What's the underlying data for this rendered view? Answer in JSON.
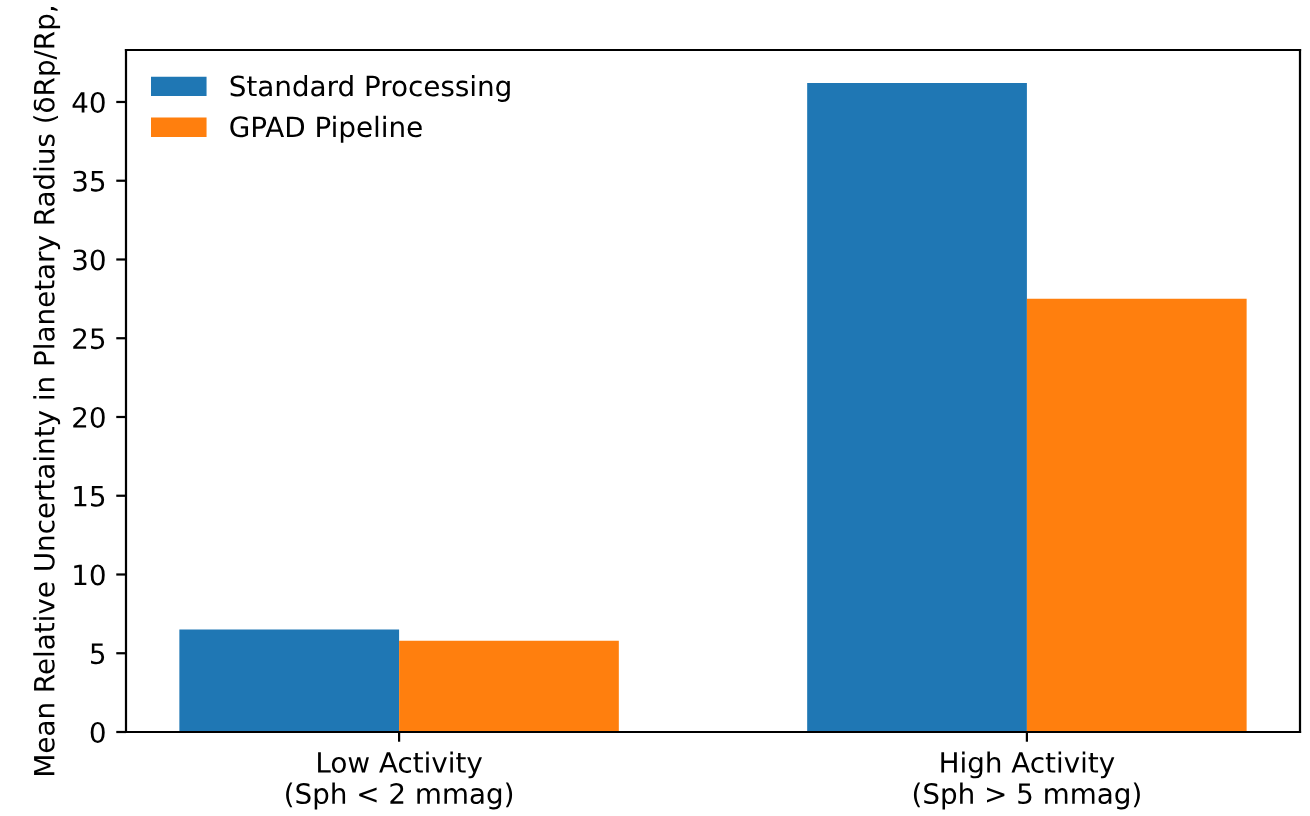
{
  "chart_data": {
    "type": "bar",
    "ylabel": "Mean Relative Uncertainty in Planetary Radius (δRp/Rp,",
    "categories": [
      "Low Activity\n(Sph < 2 mmag)",
      "High Activity\n(Sph > 5 mmag)"
    ],
    "series": [
      {
        "name": "Standard Processing",
        "color": "#1f77b4",
        "values": [
          6.5,
          41.2
        ]
      },
      {
        "name": "GPAD Pipeline",
        "color": "#ff7f0e",
        "values": [
          5.8,
          27.5
        ]
      }
    ],
    "ylim": [
      0,
      43.3
    ],
    "yticks": [
      0,
      5,
      10,
      15,
      20,
      25,
      30,
      35,
      40
    ],
    "legend": "top left",
    "grid": false
  }
}
